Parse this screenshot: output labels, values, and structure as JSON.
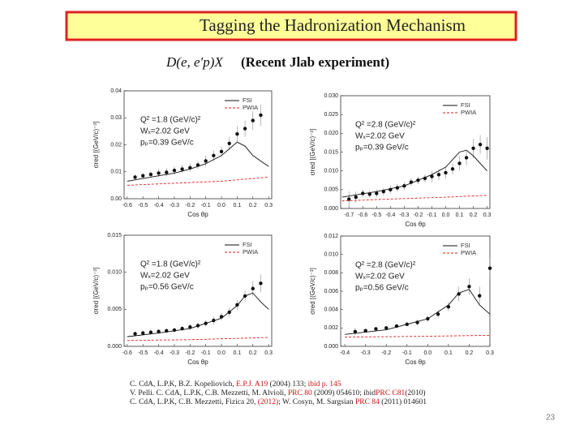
{
  "slide": {
    "title": "Tagging the Hadronization Mechanism",
    "subtitle_math": "D(e, e′p)X",
    "subtitle": "(Recent Jlab experiment)",
    "references": [
      [
        {
          "text": "C. CdA, L.P.K, B.Z. Kopeliovich, ",
          "color": "#222"
        },
        {
          "text": "E.P.J. ",
          "color": "#d01010"
        },
        {
          "text": "A19",
          "color": "#d01010"
        },
        {
          "text": " (2004) 133; ",
          "color": "#222"
        },
        {
          "text": "ibid p. 145",
          "color": "#d01010"
        }
      ],
      [
        {
          "text": "V. Pelli. C. CdA, L.P.K, C.B. Mezzetti, M. Alvioli, ",
          "color": "#222"
        },
        {
          "text": "PRC 80",
          "color": "#d01010"
        },
        {
          "text": " (2009) 054610; ibid",
          "color": "#222"
        },
        {
          "text": "PRC C81",
          "color": "#d01010"
        },
        {
          "text": "(2010)",
          "color": "#222"
        }
      ],
      [
        {
          "text": "C. CdA, L.P.K, C.B. Mezzetti, Fizica 20, ",
          "color": "#222"
        },
        {
          "text": "(2012)",
          "color": "#d01010"
        },
        {
          "text": "; W. Cosyn, M. Sargsian ",
          "color": "#222"
        },
        {
          "text": "PRC 84",
          "color": "#d01010"
        },
        {
          "text": " (2011) 014601",
          "color": "#222"
        }
      ]
    ],
    "page_number": "23"
  },
  "chart_data": [
    {
      "type": "scatter",
      "xlabel": "Cos θp",
      "ylabel": "σred [(GeV/c)⁻³]",
      "annotations": [
        "Q² =1.8 (GeV/c)²",
        "Wₓ=2.02 GeV",
        "pₚ=0.39 GeV/c"
      ],
      "xlim": [
        -0.62,
        0.32
      ],
      "ylim": [
        0,
        0.04
      ],
      "xticks": [
        -0.6,
        -0.5,
        -0.4,
        -0.3,
        -0.2,
        -0.1,
        {
          "value": 0,
          "label": "0.0"
        },
        0.1,
        0.2,
        0.3
      ],
      "yticks": [
        {
          "value": 0,
          "label": "0.00"
        },
        0.01,
        0.02,
        0.03,
        0.04
      ],
      "series": [
        {
          "x": [
            -0.55,
            -0.5,
            -0.45,
            -0.4,
            -0.35,
            -0.3,
            -0.25,
            -0.2,
            -0.15,
            -0.1,
            -0.05,
            0,
            0.05,
            0.1,
            0.15,
            0.2,
            0.25
          ],
          "values": [
            0.008,
            0.0085,
            0.009,
            0.0095,
            0.0098,
            0.0105,
            0.011,
            0.0115,
            0.0125,
            0.014,
            0.016,
            0.0175,
            0.0205,
            0.024,
            0.026,
            0.029,
            0.031
          ],
          "errors": [
            0.001,
            0.001,
            0.001,
            0.0015,
            0.0015,
            0.0015,
            0.0015,
            0.0015,
            0.0015,
            0.002,
            0.002,
            0.002,
            0.0025,
            0.003,
            0.003,
            0.0035,
            0.004
          ],
          "color": "#111"
        },
        {
          "name": "FSI",
          "style": "solid",
          "color": "#111",
          "x": [
            -0.6,
            -0.5,
            -0.4,
            -0.3,
            -0.2,
            -0.1,
            0,
            0.05,
            0.1,
            0.15,
            0.2,
            0.25,
            0.3
          ],
          "values": [
            0.0065,
            0.0075,
            0.0085,
            0.0095,
            0.011,
            0.013,
            0.016,
            0.0185,
            0.021,
            0.0195,
            0.016,
            0.014,
            0.012
          ]
        },
        {
          "name": "PWIA",
          "style": "dashed",
          "color": "#e02020",
          "x": [
            -0.6,
            -0.4,
            -0.2,
            0,
            0.1,
            0.2,
            0.3
          ],
          "values": [
            0.005,
            0.0055,
            0.006,
            0.0065,
            0.007,
            0.0075,
            0.008
          ]
        }
      ]
    },
    {
      "type": "scatter",
      "xlabel": "Cos θp",
      "ylabel": "σred [(GeV/c)⁻³]",
      "annotations": [
        "Q² =2.8 (GeV/c)²",
        "Wₓ=2.02 GeV",
        "pₚ=0.39 GeV/c"
      ],
      "xlim": [
        -0.76,
        0.32
      ],
      "ylim": [
        0,
        0.03
      ],
      "xticks": [
        -0.7,
        -0.6,
        -0.5,
        -0.4,
        -0.3,
        -0.2,
        -0.1,
        {
          "value": 0,
          "label": "0.0"
        },
        0.1,
        0.2,
        0.3
      ],
      "yticks": [
        {
          "value": 0,
          "label": "0.000"
        },
        {
          "value": 0.005,
          "label": "0.005"
        },
        {
          "value": 0.01,
          "label": "0.010"
        },
        {
          "value": 0.015,
          "label": "0.015"
        },
        {
          "value": 0.02,
          "label": "0.020"
        },
        {
          "value": 0.025,
          "label": "0.025"
        },
        {
          "value": 0.03,
          "label": "0.030"
        }
      ],
      "series": [
        {
          "x": [
            -0.7,
            -0.65,
            -0.6,
            -0.55,
            -0.5,
            -0.45,
            -0.4,
            -0.35,
            -0.3,
            -0.25,
            -0.2,
            -0.15,
            -0.1,
            -0.05,
            0,
            0.05,
            0.1,
            0.15,
            0.2,
            0.25,
            0.3
          ],
          "values": [
            0.0025,
            0.003,
            0.004,
            0.0038,
            0.004,
            0.0045,
            0.005,
            0.0055,
            0.006,
            0.007,
            0.0075,
            0.008,
            0.0085,
            0.009,
            0.0095,
            0.0105,
            0.012,
            0.0135,
            0.016,
            0.017,
            0.016
          ],
          "errors": [
            0.002,
            0.0015,
            0.001,
            0.001,
            0.001,
            0.001,
            0.001,
            0.001,
            0.001,
            0.001,
            0.001,
            0.001,
            0.0015,
            0.0015,
            0.0015,
            0.0015,
            0.002,
            0.002,
            0.0025,
            0.0025,
            0.003
          ],
          "color": "#111"
        },
        {
          "name": "FSI",
          "style": "solid",
          "color": "#111",
          "x": [
            -0.75,
            -0.5,
            -0.3,
            -0.1,
            0,
            0.05,
            0.1,
            0.15,
            0.2,
            0.3
          ],
          "values": [
            0.003,
            0.0045,
            0.006,
            0.009,
            0.011,
            0.013,
            0.015,
            0.0155,
            0.014,
            0.01
          ]
        },
        {
          "name": "PWIA",
          "style": "dashed",
          "color": "#e02020",
          "x": [
            -0.75,
            -0.4,
            0,
            0.3
          ],
          "values": [
            0.002,
            0.0025,
            0.003,
            0.0035
          ]
        }
      ]
    },
    {
      "type": "scatter",
      "xlabel": "Cos θp",
      "ylabel": "σred [(GeV/c)⁻³]",
      "annotations": [
        "Q² =1.8 (GeV/c)²",
        "Wₓ=2.02 GeV",
        "pₚ=0.56 GeV/c"
      ],
      "xlim": [
        -0.62,
        0.32
      ],
      "ylim": [
        0,
        0.015
      ],
      "xticks": [
        -0.6,
        -0.5,
        -0.4,
        -0.3,
        -0.2,
        -0.1,
        {
          "value": 0,
          "label": "0.0"
        },
        0.1,
        0.2,
        0.3
      ],
      "yticks": [
        {
          "value": 0,
          "label": "0.000"
        },
        {
          "value": 0.005,
          "label": "0.005"
        },
        {
          "value": 0.01,
          "label": "0.010"
        },
        {
          "value": 0.015,
          "label": "0.015"
        }
      ],
      "series": [
        {
          "x": [
            -0.55,
            -0.5,
            -0.45,
            -0.4,
            -0.35,
            -0.3,
            -0.25,
            -0.2,
            -0.15,
            -0.1,
            -0.05,
            0,
            0.05,
            0.1,
            0.15,
            0.2,
            0.25
          ],
          "values": [
            0.0017,
            0.0018,
            0.0019,
            0.002,
            0.0021,
            0.0022,
            0.0024,
            0.0026,
            0.0028,
            0.0031,
            0.0035,
            0.004,
            0.0046,
            0.0056,
            0.0068,
            0.0078,
            0.0085
          ],
          "errors": [
            0.0003,
            0.0003,
            0.0003,
            0.0003,
            0.0003,
            0.0003,
            0.0003,
            0.0004,
            0.0004,
            0.0004,
            0.0005,
            0.0005,
            0.0006,
            0.0007,
            0.0008,
            0.001,
            0.0012
          ],
          "color": "#111"
        },
        {
          "name": "FSI",
          "style": "solid",
          "color": "#111",
          "x": [
            -0.6,
            -0.4,
            -0.2,
            0,
            0.1,
            0.15,
            0.2,
            0.25,
            0.3
          ],
          "values": [
            0.0013,
            0.0018,
            0.0024,
            0.0038,
            0.0055,
            0.0068,
            0.0072,
            0.006,
            0.005
          ]
        },
        {
          "name": "PWIA",
          "style": "dashed",
          "color": "#e02020",
          "x": [
            -0.6,
            -0.2,
            0.3
          ],
          "values": [
            0.0008,
            0.0009,
            0.0012
          ]
        }
      ]
    },
    {
      "type": "scatter",
      "xlabel": "Cos θp",
      "ylabel": "σred [(GeV/c)⁻³]",
      "annotations": [
        "Q² =2.8 (GeV/c)²",
        "Wₓ=2.02 GeV",
        "pₚ=0.56 GeV/c"
      ],
      "xlim": [
        -0.42,
        0.3
      ],
      "ylim": [
        0,
        0.012
      ],
      "xticks": [
        -0.4,
        -0.3,
        -0.2,
        -0.1,
        {
          "value": 0,
          "label": "0.0"
        },
        0.1,
        0.2,
        0.3
      ],
      "yticks": [
        {
          "value": 0,
          "label": "0.000"
        },
        {
          "value": 0.002,
          "label": "0.002"
        },
        {
          "value": 0.004,
          "label": "0.004"
        },
        {
          "value": 0.006,
          "label": "0.006"
        },
        {
          "value": 0.008,
          "label": "0.008"
        },
        {
          "value": 0.01,
          "label": "0.010"
        },
        {
          "value": 0.012,
          "label": "0.012"
        }
      ],
      "series": [
        {
          "x": [
            -0.35,
            -0.3,
            -0.25,
            -0.2,
            -0.15,
            -0.1,
            -0.05,
            0,
            0.05,
            0.1,
            0.15,
            0.2,
            0.25,
            0.3
          ],
          "values": [
            0.0016,
            0.0017,
            0.0019,
            0.002,
            0.0022,
            0.0024,
            0.0026,
            0.003,
            0.0035,
            0.0043,
            0.0057,
            0.0065,
            0.0055,
            0.0085
          ],
          "errors": [
            0.0004,
            0.0002,
            0.0002,
            0.0002,
            0.0002,
            0.0002,
            0.0003,
            0.0003,
            0.0004,
            0.0005,
            0.0008,
            0.0009,
            0.001,
            0.0012
          ],
          "color": "#111"
        },
        {
          "name": "FSI",
          "style": "solid",
          "color": "#111",
          "x": [
            -0.4,
            -0.2,
            0,
            0.1,
            0.15,
            0.2,
            0.25,
            0.3
          ],
          "values": [
            0.0013,
            0.0018,
            0.003,
            0.0045,
            0.0058,
            0.0062,
            0.0045,
            0.0035
          ]
        },
        {
          "name": "PWIA",
          "style": "dashed",
          "color": "#e02020",
          "x": [
            -0.4,
            0,
            0.3
          ],
          "values": [
            0.001,
            0.0011,
            0.0012
          ]
        }
      ]
    }
  ]
}
